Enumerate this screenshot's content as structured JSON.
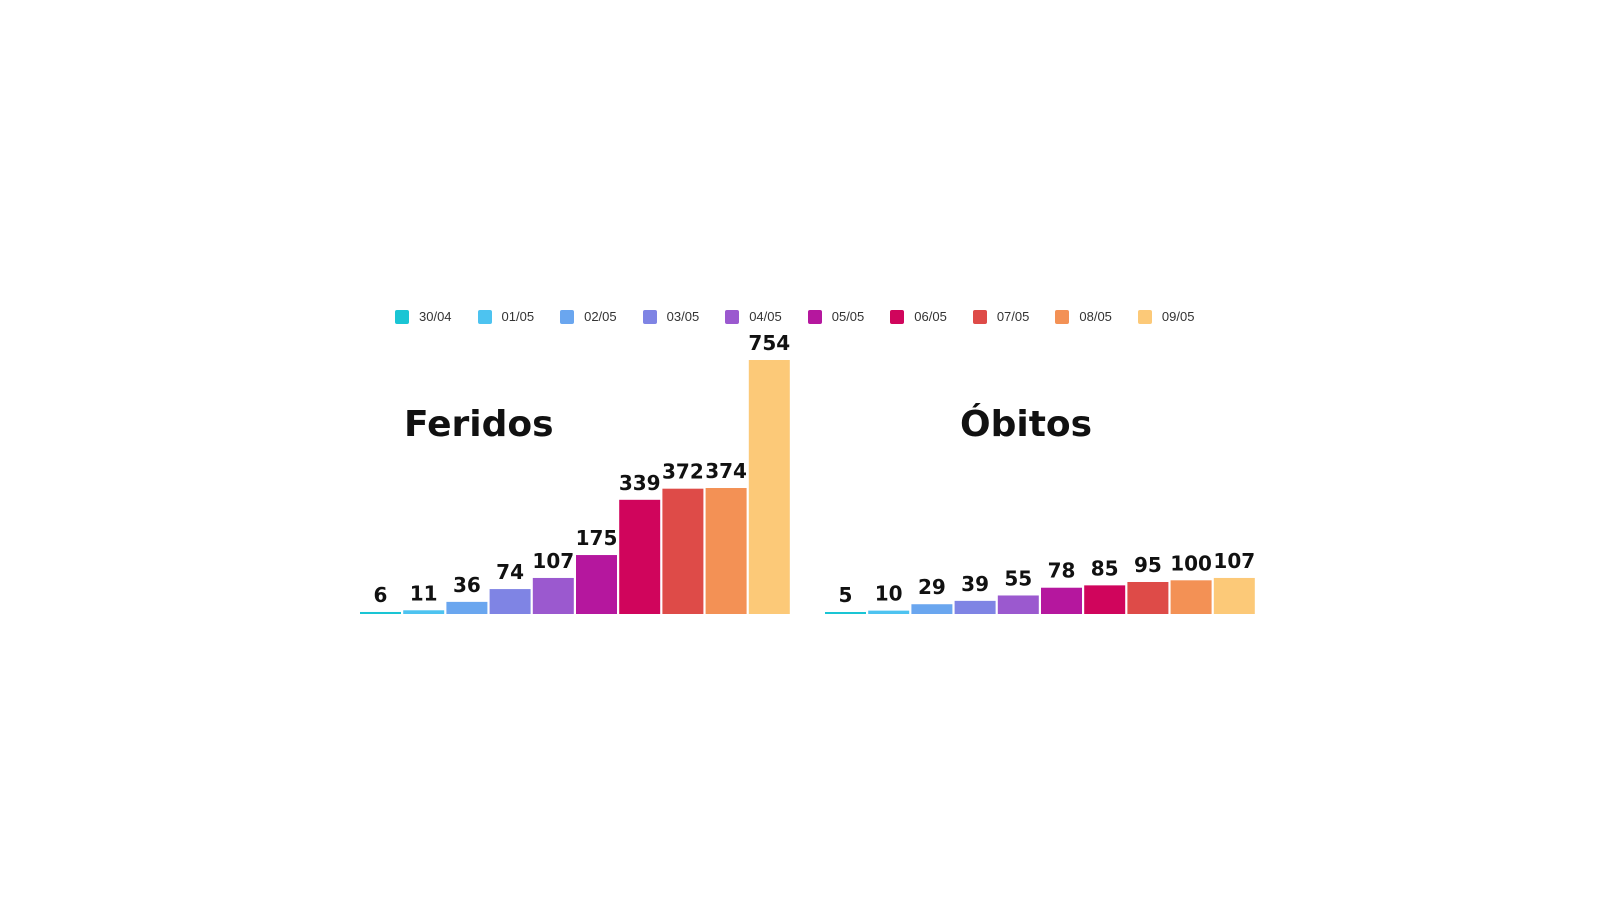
{
  "chart_data": [
    {
      "type": "bar",
      "title": "Feridos",
      "categories": [
        "30/04",
        "01/05",
        "02/05",
        "03/05",
        "04/05",
        "05/05",
        "06/05",
        "07/05",
        "08/05",
        "09/05"
      ],
      "values": [
        6,
        11,
        36,
        74,
        107,
        175,
        339,
        372,
        374,
        754
      ],
      "ylim": [
        0,
        754
      ],
      "xlabel": "",
      "ylabel": "",
      "grid": false,
      "legend": "top-center"
    },
    {
      "type": "bar",
      "title": "Óbitos",
      "categories": [
        "30/04",
        "01/05",
        "02/05",
        "03/05",
        "04/05",
        "05/05",
        "06/05",
        "07/05",
        "08/05",
        "09/05"
      ],
      "values": [
        5,
        10,
        29,
        39,
        55,
        78,
        85,
        95,
        100,
        107
      ],
      "ylim": [
        0,
        754
      ],
      "xlabel": "",
      "ylabel": "",
      "grid": false,
      "legend": "top-center"
    }
  ],
  "legend": {
    "items": [
      {
        "label": "30/04",
        "color": "#1ac5d4"
      },
      {
        "label": "01/05",
        "color": "#4dc3f0"
      },
      {
        "label": "02/05",
        "color": "#6aa6ef"
      },
      {
        "label": "03/05",
        "color": "#7f84e4"
      },
      {
        "label": "04/05",
        "color": "#9b59cf"
      },
      {
        "label": "05/05",
        "color": "#b5179e"
      },
      {
        "label": "06/05",
        "color": "#d0055c"
      },
      {
        "label": "07/05",
        "color": "#de4b48"
      },
      {
        "label": "08/05",
        "color": "#f39155"
      },
      {
        "label": "09/05",
        "color": "#fcc978"
      }
    ]
  }
}
